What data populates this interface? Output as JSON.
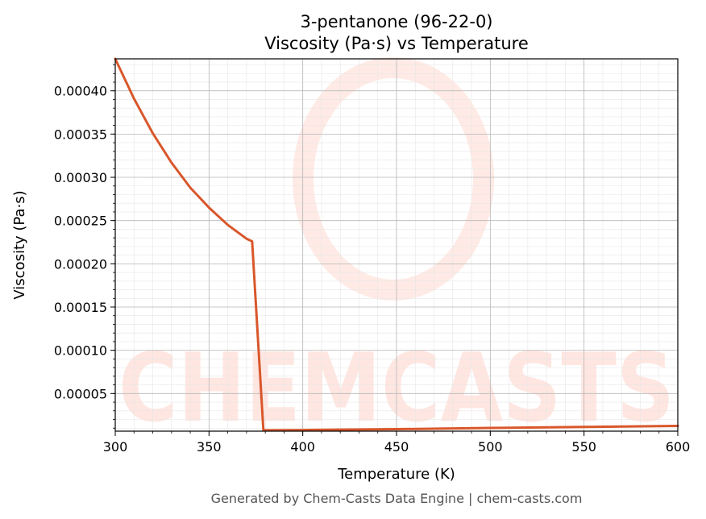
{
  "chart_data": {
    "type": "line",
    "title": "3-pentanone (96-22-0)",
    "subtitle": "Viscosity (Pa·s) vs Temperature",
    "xlabel": "Temperature (K)",
    "ylabel": "Viscosity (Pa·s)",
    "xlim": [
      300,
      600
    ],
    "ylim": [
      6.5e-06,
      0.000437
    ],
    "x_ticks": [
      300,
      350,
      400,
      450,
      500,
      550,
      600
    ],
    "y_ticks": [
      5e-05,
      0.0001,
      0.00015,
      0.0002,
      0.00025,
      0.0003,
      0.00035,
      0.0004
    ],
    "y_tick_labels": [
      "0.00005",
      "0.00010",
      "0.00015",
      "0.00020",
      "0.00025",
      "0.00030",
      "0.00035",
      "0.00040"
    ],
    "grid": true,
    "line_color": "#d9572b",
    "series": [
      {
        "values_x": [
          300,
          310,
          320,
          330,
          340,
          350,
          360,
          370,
          373,
          379,
          400,
          450,
          500,
          550,
          600
        ],
        "values_y": [
          0.000437,
          0.000391,
          0.000351,
          0.000317,
          0.000288,
          0.000265,
          0.000245,
          0.000229,
          0.000226,
          7.5e-06,
          7.8e-06,
          8.8e-06,
          1.02e-05,
          1.14e-05,
          1.26e-05
        ]
      }
    ],
    "watermark_text": "CHEMCASTS",
    "footer": "Generated by Chem-Casts Data Engine | chem-casts.com"
  }
}
